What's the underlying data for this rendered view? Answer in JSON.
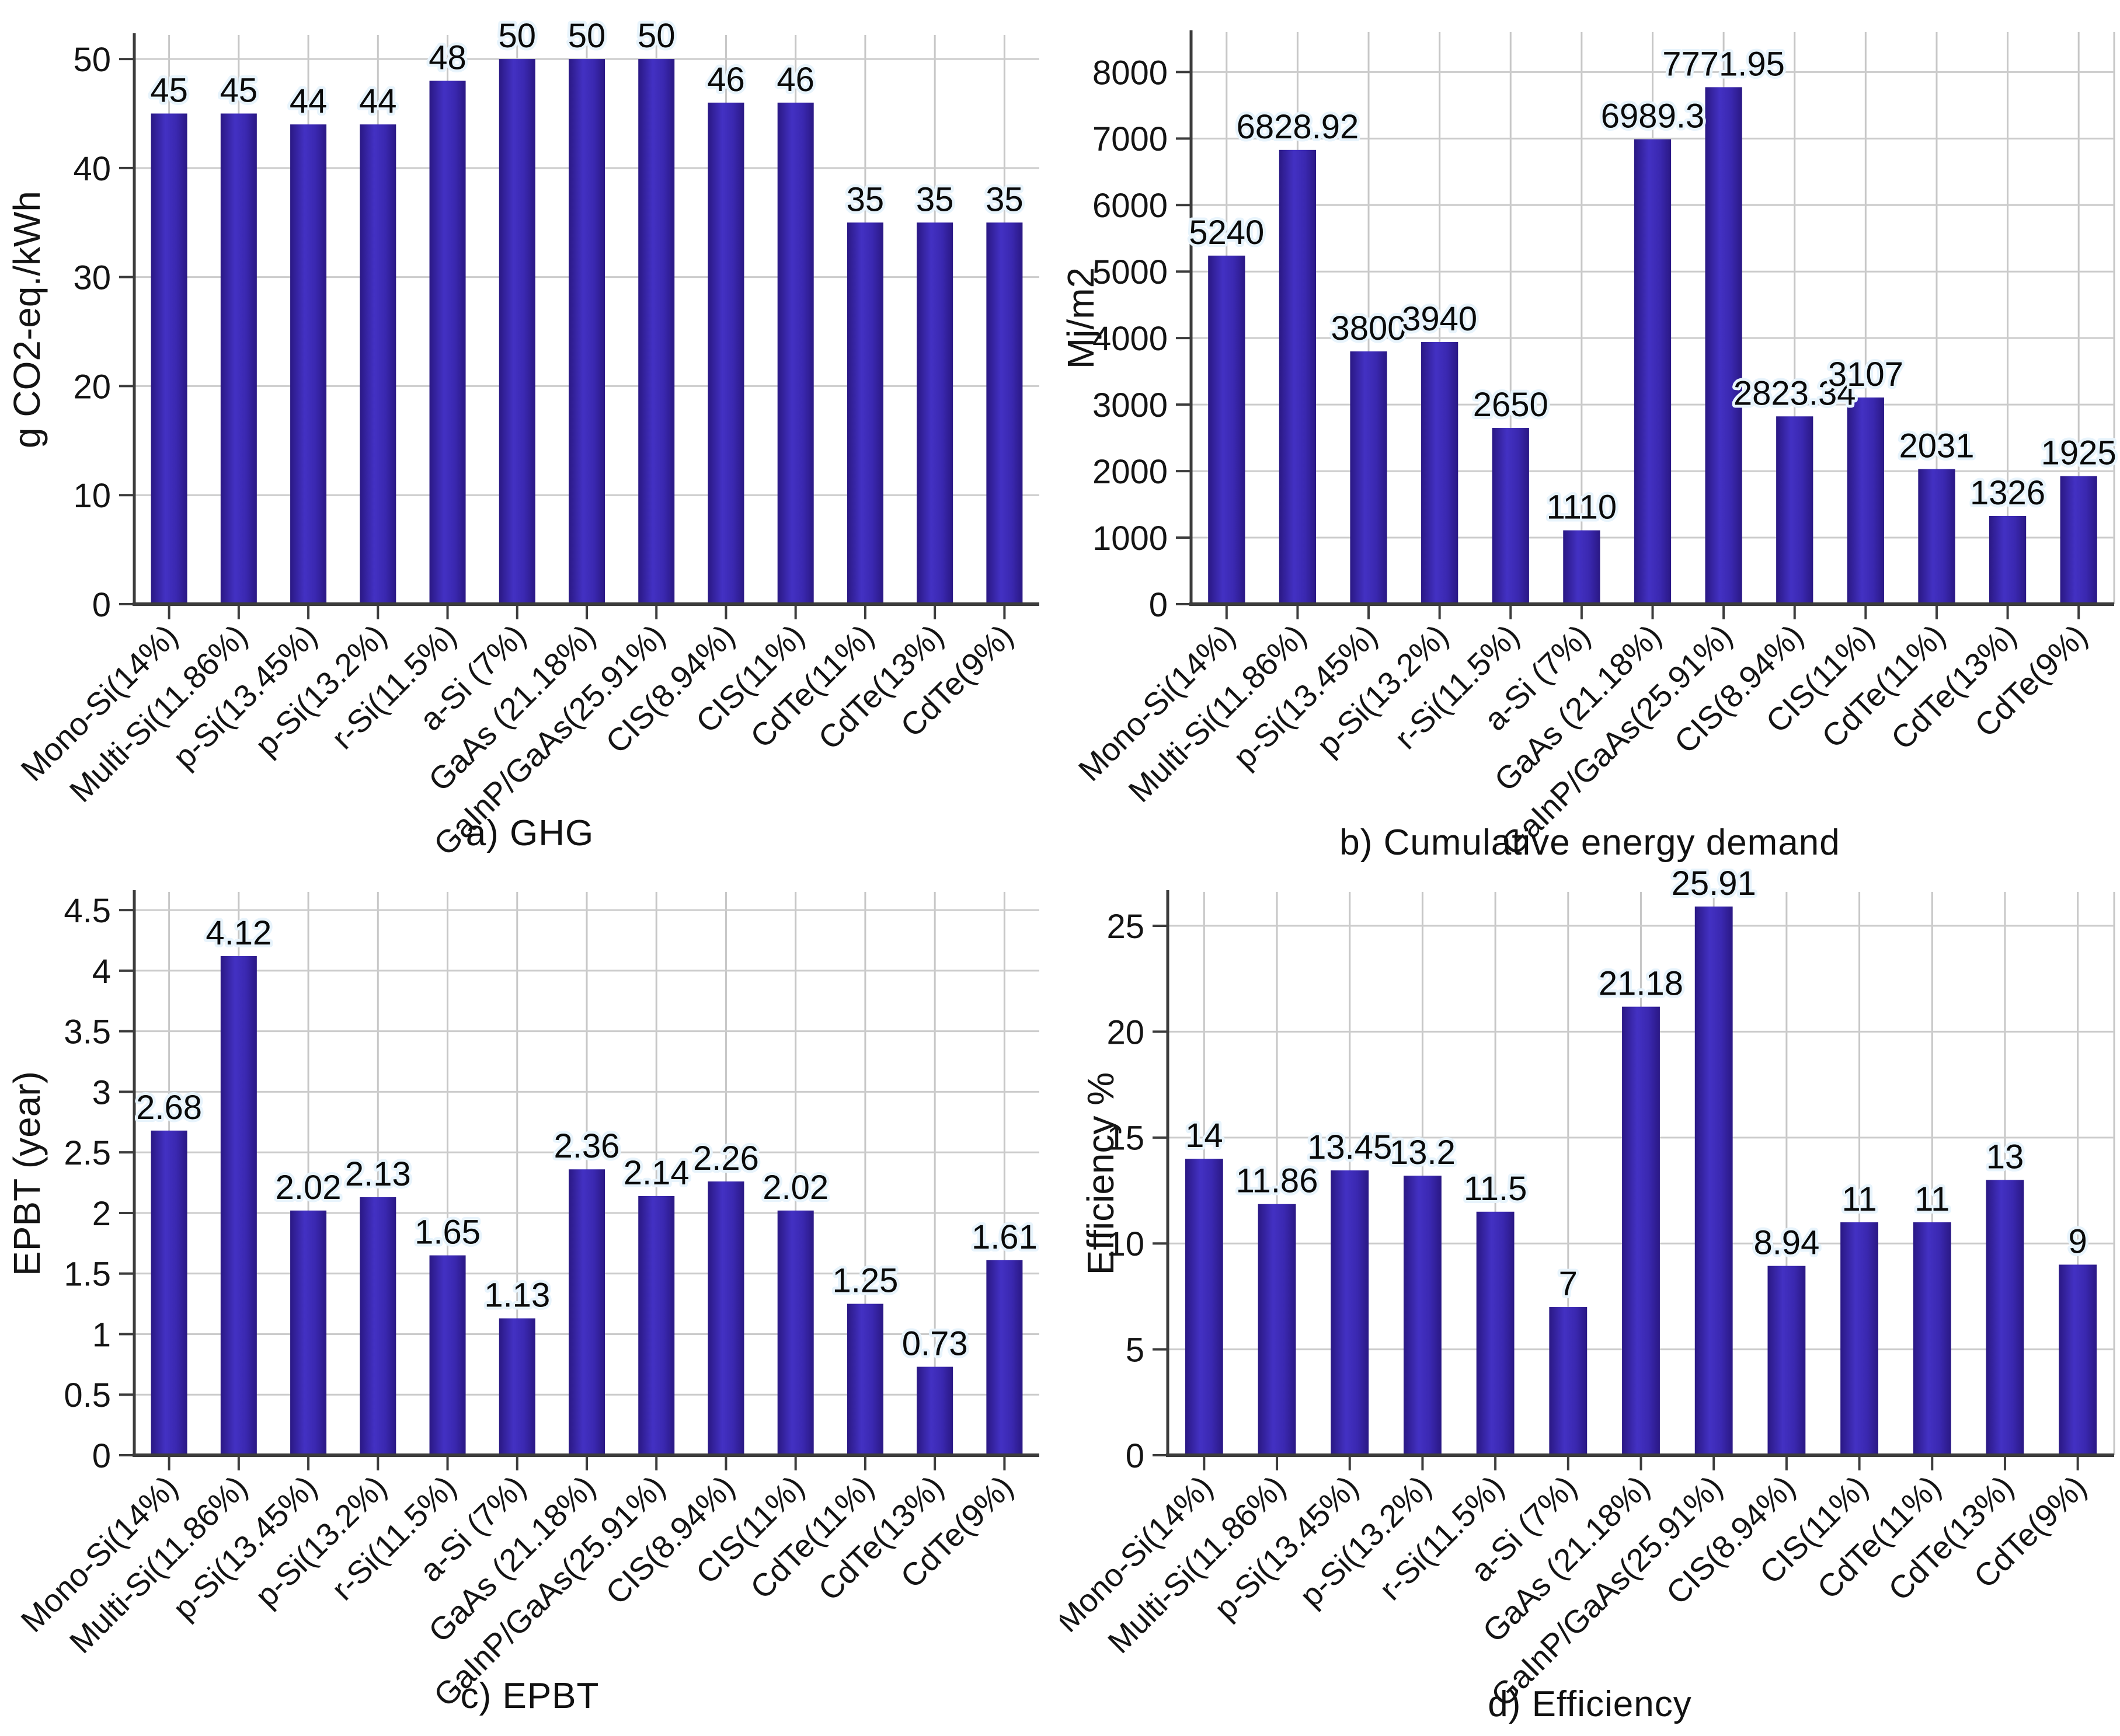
{
  "palette": {
    "bar_fill": "#3a28b0",
    "bar_fill_dark": "#2a1884",
    "bar_fill_light": "#4331c3",
    "grid_vertical": "#c7c7c7",
    "grid_horizontal": "#cccccc",
    "axis": "#3c3c3c",
    "tick_text": "#141414",
    "value_label_halo": "#e8f4fc",
    "background": "#ffffff"
  },
  "chart_data": [
    {
      "id": "ghg",
      "type": "bar",
      "caption": "a) GHG",
      "ylabel": "g CO2-eq./kWh",
      "xlabel": "",
      "legend": "none",
      "grid": "on",
      "ylim": [
        0,
        52.2
      ],
      "yticks": [
        0,
        10,
        20,
        30,
        40,
        50
      ],
      "categories": [
        "Mono-Si(14%)",
        "Multi-Si(11.86%)",
        "p-Si(13.45%)",
        "p-Si(13.2%)",
        "r-Si(11.5%)",
        "a-Si (7%)",
        "GaAs (21.18%)",
        "GaInP/GaAs(25.91%)",
        "CIS(8.94%)",
        "CIS(11%)",
        "CdTe(11%)",
        "CdTe(13%)",
        "CdTe(9%)"
      ],
      "values": [
        45,
        45,
        44,
        44,
        48,
        50,
        50,
        50,
        46,
        46,
        35,
        35,
        35
      ]
    },
    {
      "id": "cumulative-energy-demand",
      "type": "bar",
      "caption": "b) Cumulative energy demand",
      "ylabel": "Mj/m2",
      "xlabel": "",
      "legend": "none",
      "grid": "on",
      "ylim": [
        0,
        8600
      ],
      "yticks": [
        0,
        1000,
        2000,
        3000,
        4000,
        5000,
        6000,
        7000,
        8000
      ],
      "categories": [
        "Mono-Si(14%)",
        "Multi-Si(11.86%)",
        "p-Si(13.45%)",
        "p-Si(13.2%)",
        "r-Si(11.5%)",
        "a-Si (7%)",
        "GaAs (21.18%)",
        "GaInP/GaAs(25.91%)",
        "CIS(8.94%)",
        "CIS(11%)",
        "CdTe(11%)",
        "CdTe(13%)",
        "CdTe(9%)"
      ],
      "values": [
        5240,
        6828.92,
        3800,
        3940,
        2650,
        1110,
        6989.3,
        7771.95,
        2823.34,
        3107,
        2031,
        1326,
        1925
      ]
    },
    {
      "id": "epbt",
      "type": "bar",
      "caption": "c) EPBT",
      "ylabel": "EPBT (year)",
      "xlabel": "",
      "legend": "none",
      "grid": "on",
      "ylim": [
        0,
        4.65
      ],
      "yticks": [
        0,
        0.5,
        1,
        1.5,
        2,
        2.5,
        3,
        3.5,
        4,
        4.5
      ],
      "categories": [
        "Mono-Si(14%)",
        "Multi-Si(11.86%)",
        "p-Si(13.45%)",
        "p-Si(13.2%)",
        "r-Si(11.5%)",
        "a-Si (7%)",
        "GaAs (21.18%)",
        "GaInP/GaAs(25.91%)",
        "CIS(8.94%)",
        "CIS(11%)",
        "CdTe(11%)",
        "CdTe(13%)",
        "CdTe(9%)"
      ],
      "values": [
        2.68,
        4.12,
        2.02,
        2.13,
        1.65,
        1.13,
        2.36,
        2.14,
        2.26,
        2.02,
        1.25,
        0.73,
        1.61
      ]
    },
    {
      "id": "efficiency",
      "type": "bar",
      "caption": "d) Efficiency",
      "ylabel": "Efficiency %",
      "xlabel": "",
      "legend": "none",
      "grid": "on",
      "ylim": [
        0,
        26.6
      ],
      "yticks": [
        0,
        5,
        10,
        15,
        20,
        25
      ],
      "categories": [
        "Mono-Si(14%)",
        "Multi-Si(11.86%)",
        "p-Si(13.45%)",
        "p-Si(13.2%)",
        "r-Si(11.5%)",
        "a-Si (7%)",
        "GaAs (21.18%)",
        "GaInP/GaAs(25.91%)",
        "CIS(8.94%)",
        "CIS(11%)",
        "CdTe(11%)",
        "CdTe(13%)",
        "CdTe(9%)"
      ],
      "values": [
        14,
        11.86,
        13.45,
        13.2,
        11.5,
        7,
        21.18,
        25.91,
        8.94,
        11,
        11,
        13,
        9
      ]
    }
  ]
}
